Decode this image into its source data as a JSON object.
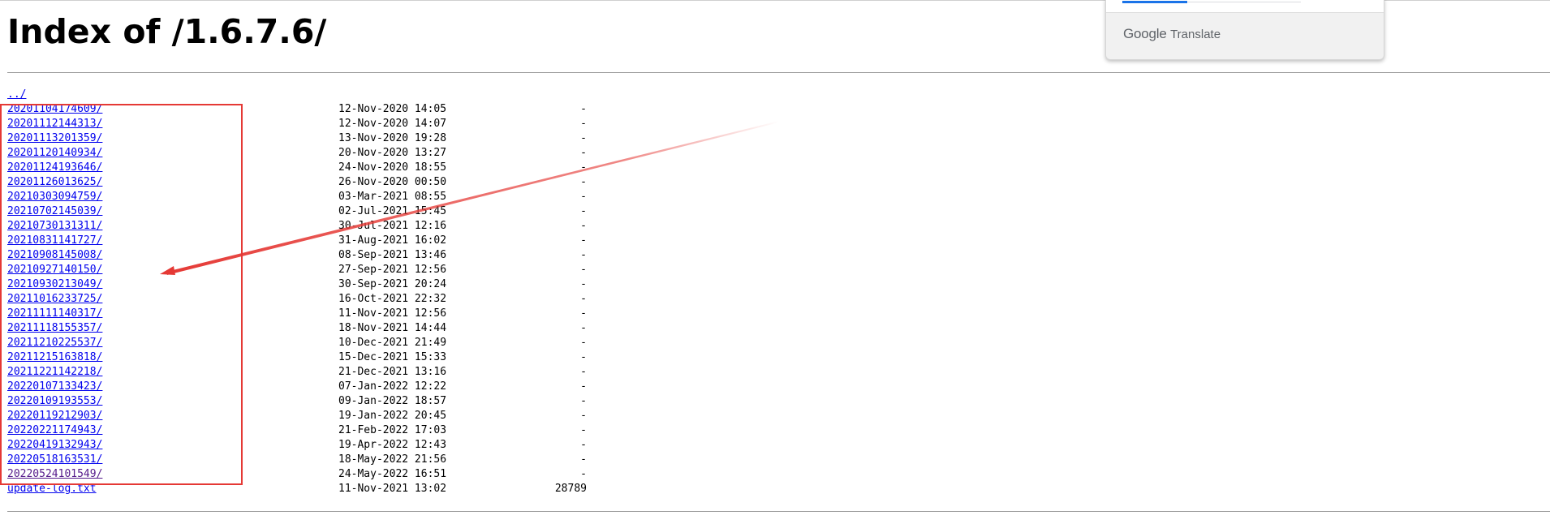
{
  "page": {
    "title": "Index of /1.6.7.6/"
  },
  "listing": [
    {
      "name": "../",
      "date": "",
      "size": ""
    },
    {
      "name": "20201104174609/",
      "date": "12-Nov-2020 14:05",
      "size": "-"
    },
    {
      "name": "20201112144313/",
      "date": "12-Nov-2020 14:07",
      "size": "-"
    },
    {
      "name": "20201113201359/",
      "date": "13-Nov-2020 19:28",
      "size": "-"
    },
    {
      "name": "20201120140934/",
      "date": "20-Nov-2020 13:27",
      "size": "-"
    },
    {
      "name": "20201124193646/",
      "date": "24-Nov-2020 18:55",
      "size": "-"
    },
    {
      "name": "20201126013625/",
      "date": "26-Nov-2020 00:50",
      "size": "-"
    },
    {
      "name": "20210303094759/",
      "date": "03-Mar-2021 08:55",
      "size": "-"
    },
    {
      "name": "20210702145039/",
      "date": "02-Jul-2021 15:45",
      "size": "-"
    },
    {
      "name": "20210730131311/",
      "date": "30-Jul-2021 12:16",
      "size": "-"
    },
    {
      "name": "20210831141727/",
      "date": "31-Aug-2021 16:02",
      "size": "-"
    },
    {
      "name": "20210908145008/",
      "date": "08-Sep-2021 13:46",
      "size": "-"
    },
    {
      "name": "20210927140150/",
      "date": "27-Sep-2021 12:56",
      "size": "-"
    },
    {
      "name": "20210930213049/",
      "date": "30-Sep-2021 20:24",
      "size": "-"
    },
    {
      "name": "20211016233725/",
      "date": "16-Oct-2021 22:32",
      "size": "-"
    },
    {
      "name": "20211111140317/",
      "date": "11-Nov-2021 12:56",
      "size": "-"
    },
    {
      "name": "20211118155357/",
      "date": "18-Nov-2021 14:44",
      "size": "-"
    },
    {
      "name": "20211210225537/",
      "date": "10-Dec-2021 21:49",
      "size": "-"
    },
    {
      "name": "20211215163818/",
      "date": "15-Dec-2021 15:33",
      "size": "-"
    },
    {
      "name": "20211221142218/",
      "date": "21-Dec-2021 13:16",
      "size": "-"
    },
    {
      "name": "20220107133423/",
      "date": "07-Jan-2022 12:22",
      "size": "-"
    },
    {
      "name": "20220109193553/",
      "date": "09-Jan-2022 18:57",
      "size": "-"
    },
    {
      "name": "20220119212903/",
      "date": "19-Jan-2022 20:45",
      "size": "-"
    },
    {
      "name": "20220221174943/",
      "date": "21-Feb-2022 17:03",
      "size": "-"
    },
    {
      "name": "20220419132943/",
      "date": "19-Apr-2022 12:43",
      "size": "-"
    },
    {
      "name": "20220518163531/",
      "date": "18-May-2022 21:56",
      "size": "-"
    },
    {
      "name": "20220524101549/",
      "date": "24-May-2022 16:51",
      "size": "-",
      "visited": true
    },
    {
      "name": "update-log.txt",
      "date": "11-Nov-2021 13:02",
      "size": "28789"
    }
  ],
  "translate_popup": {
    "brand_google": "Google",
    "brand_translate": "Translate"
  },
  "annotation": {
    "color": "#e53935"
  },
  "colors": {
    "link": "#0000ee",
    "visited_link": "#551a8b",
    "tab_active": "#1a73e8"
  }
}
